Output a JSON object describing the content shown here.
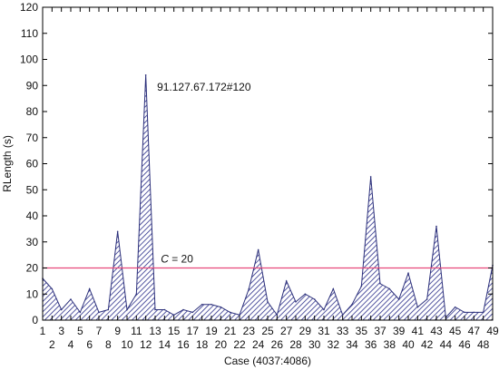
{
  "chart_data": {
    "type": "area",
    "xlabel": "Case (4037:4086)",
    "ylabel": "RLength (s)",
    "ylim": [
      0,
      120
    ],
    "yticks": [
      0,
      10,
      20,
      30,
      40,
      50,
      60,
      70,
      80,
      90,
      100,
      110,
      120
    ],
    "x": [
      1,
      2,
      3,
      4,
      5,
      6,
      7,
      8,
      9,
      10,
      11,
      12,
      13,
      14,
      15,
      16,
      17,
      18,
      19,
      20,
      21,
      22,
      23,
      24,
      25,
      26,
      27,
      28,
      29,
      30,
      31,
      32,
      33,
      34,
      35,
      36,
      37,
      38,
      39,
      40,
      41,
      42,
      43,
      44,
      45,
      46,
      47,
      48,
      49
    ],
    "xticks_top": [
      "1",
      "3",
      "5",
      "7",
      "9",
      "11",
      "13",
      "15",
      "17",
      "19",
      "21",
      "23",
      "25",
      "27",
      "29",
      "31",
      "33",
      "35",
      "37",
      "39",
      "41",
      "43",
      "45",
      "47",
      "49"
    ],
    "xticks_bottom": [
      "2",
      "4",
      "6",
      "8",
      "10",
      "12",
      "14",
      "16",
      "18",
      "20",
      "22",
      "24",
      "26",
      "28",
      "30",
      "32",
      "34",
      "36",
      "38",
      "40",
      "42",
      "44",
      "46",
      "48"
    ],
    "values": [
      16,
      12,
      4,
      8,
      3,
      12,
      3,
      4,
      34,
      4,
      10,
      94,
      4,
      4,
      2,
      4,
      3,
      6,
      6,
      5,
      3,
      2,
      12,
      27,
      7,
      2,
      15,
      7,
      10,
      8,
      4,
      12,
      2,
      6,
      13,
      55,
      14,
      12,
      8,
      18,
      5,
      8,
      36,
      1,
      5,
      3,
      3,
      3,
      21
    ],
    "threshold": {
      "value": 20,
      "label_italic": "C",
      "label_rest": " = 20",
      "color": "#e8477a"
    },
    "annotation": {
      "text": "91.127.67.172#120",
      "x": 13.2,
      "y": 88
    },
    "fill_color": "#3a3f8f",
    "line_color": "#2b2f7a",
    "grid": false
  }
}
